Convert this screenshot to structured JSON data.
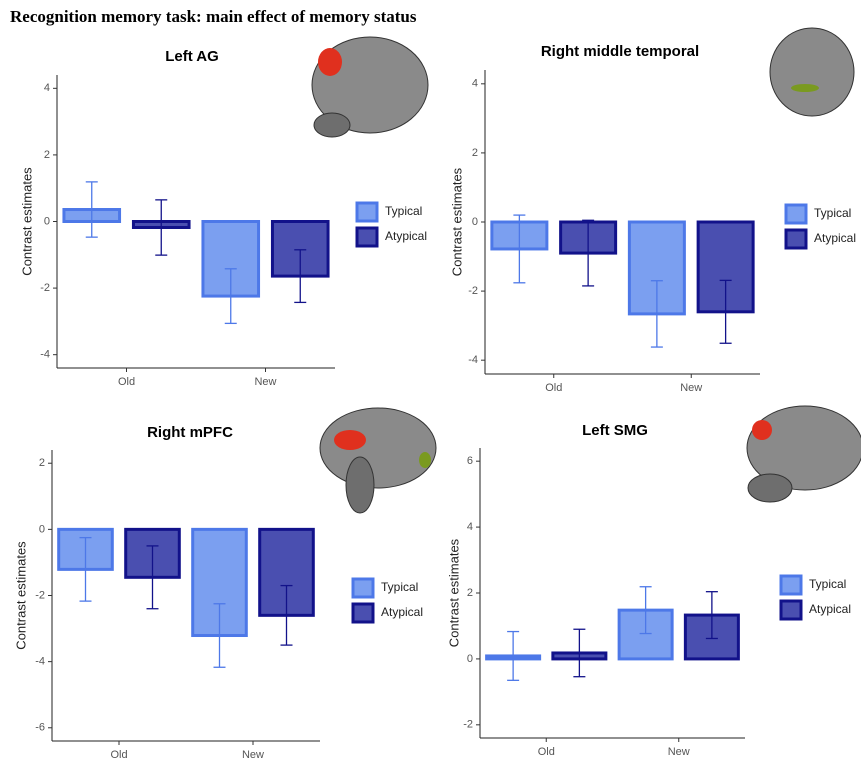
{
  "title": "Recognition memory task: main effect of memory status",
  "chart_data": [
    {
      "type": "bar",
      "title": "Left AG",
      "ylabel": "Contrast estimates",
      "categories": [
        "Old",
        "New"
      ],
      "series": [
        {
          "name": "Typical",
          "color": "#7b9ff0",
          "edgecolor": "#4d78e8",
          "values": [
            0.36,
            -2.24
          ],
          "errors": [
            0.83,
            0.82
          ]
        },
        {
          "name": "Atypical",
          "color": "#4a4fb0",
          "edgecolor": "#12128a",
          "values": [
            -0.18,
            -1.64
          ],
          "errors": [
            0.83,
            0.79
          ]
        }
      ],
      "ylim": [
        -4.4,
        4.4
      ],
      "yticks": [
        -4,
        -2,
        0,
        2,
        4
      ],
      "legend": "right"
    },
    {
      "type": "bar",
      "title": "Right middle temporal",
      "ylabel": "Contrast estimates",
      "categories": [
        "Old",
        "New"
      ],
      "series": [
        {
          "name": "Typical",
          "color": "#7b9ff0",
          "edgecolor": "#4d78e8",
          "values": [
            -0.78,
            -2.66
          ],
          "errors": [
            0.98,
            0.96
          ]
        },
        {
          "name": "Atypical",
          "color": "#4a4fb0",
          "edgecolor": "#12128a",
          "values": [
            -0.9,
            -2.6
          ],
          "errors": [
            0.95,
            0.91
          ]
        }
      ],
      "ylim": [
        -4.4,
        4.4
      ],
      "yticks": [
        -4,
        -2,
        0,
        2,
        4
      ],
      "legend": "right"
    },
    {
      "type": "bar",
      "title": "Right mPFC",
      "ylabel": "Contrast estimates",
      "categories": [
        "Old",
        "New"
      ],
      "series": [
        {
          "name": "Typical",
          "color": "#7b9ff0",
          "edgecolor": "#4d78e8",
          "values": [
            -1.21,
            -3.21
          ],
          "errors": [
            0.96,
            0.96
          ]
        },
        {
          "name": "Atypical",
          "color": "#4a4fb0",
          "edgecolor": "#12128a",
          "values": [
            -1.45,
            -2.6
          ],
          "errors": [
            0.95,
            0.9
          ]
        }
      ],
      "ylim": [
        -6.4,
        2.4
      ],
      "yticks": [
        -6,
        -4,
        -2,
        0,
        2
      ],
      "legend": "right"
    },
    {
      "type": "bar",
      "title": "Left SMG",
      "ylabel": "Contrast estimates",
      "categories": [
        "Old",
        "New"
      ],
      "series": [
        {
          "name": "Typical",
          "color": "#7b9ff0",
          "edgecolor": "#4d78e8",
          "values": [
            0.09,
            1.48
          ],
          "errors": [
            0.74,
            0.71
          ]
        },
        {
          "name": "Atypical",
          "color": "#4a4fb0",
          "edgecolor": "#12128a",
          "values": [
            0.18,
            1.33
          ],
          "errors": [
            0.72,
            0.71
          ]
        }
      ],
      "ylim": [
        -2.4,
        6.4
      ],
      "yticks": [
        -2,
        0,
        2,
        4,
        6
      ],
      "legend": "right"
    }
  ]
}
